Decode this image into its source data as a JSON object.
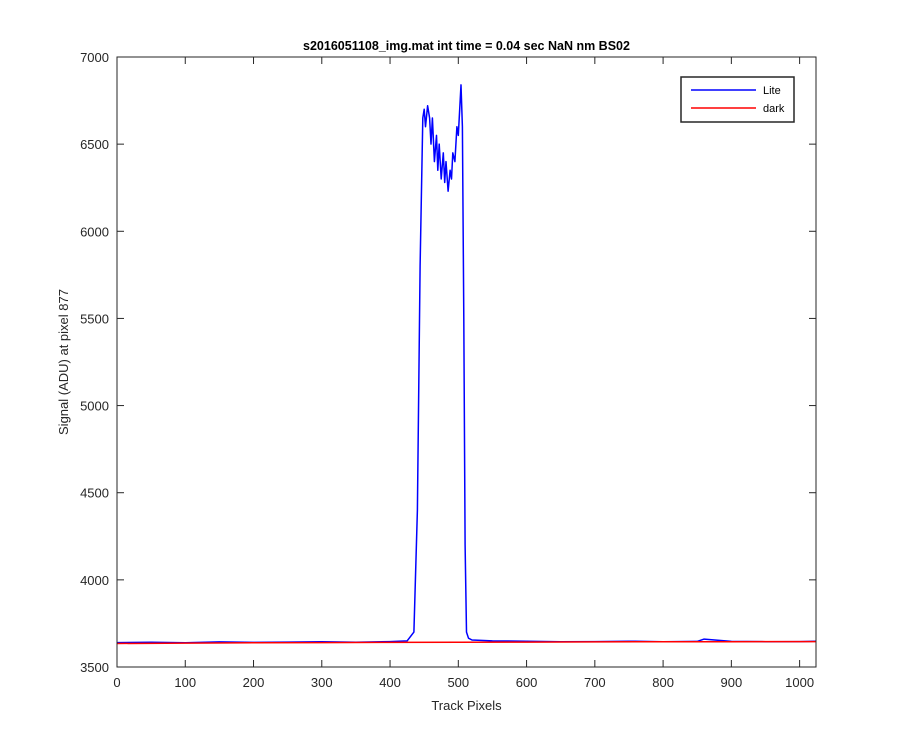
{
  "chart_data": {
    "type": "line",
    "title": "s2016051108_img.mat int time = 0.04 sec  NaN nm BS02",
    "xlabel": "Track Pixels",
    "ylabel": "Signal (ADU) at pixel 877",
    "xlim": [
      0,
      1024
    ],
    "ylim": [
      3500,
      7000
    ],
    "xticks": [
      0,
      100,
      200,
      300,
      400,
      500,
      600,
      700,
      800,
      900,
      1000
    ],
    "yticks": [
      3500,
      4000,
      4500,
      5000,
      5500,
      6000,
      6500,
      7000
    ],
    "grid": false,
    "legend_position": "top-right",
    "series": [
      {
        "name": "Lite",
        "color": "#0000ff",
        "x": [
          0,
          50,
          100,
          150,
          200,
          250,
          300,
          350,
          400,
          425,
          435,
          440,
          444,
          448,
          450,
          452,
          455,
          458,
          460,
          462,
          465,
          468,
          470,
          472,
          475,
          478,
          480,
          482,
          485,
          488,
          490,
          492,
          495,
          498,
          500,
          502,
          504,
          506,
          508,
          510,
          512,
          515,
          520,
          550,
          600,
          650,
          700,
          750,
          800,
          850,
          860,
          900,
          950,
          1000,
          1024
        ],
        "y": [
          3640,
          3642,
          3639,
          3644,
          3641,
          3643,
          3645,
          3642,
          3646,
          3650,
          3700,
          4400,
          5800,
          6650,
          6700,
          6600,
          6720,
          6650,
          6500,
          6650,
          6400,
          6550,
          6350,
          6500,
          6300,
          6450,
          6280,
          6400,
          6230,
          6350,
          6300,
          6450,
          6400,
          6600,
          6550,
          6700,
          6840,
          6600,
          5500,
          4200,
          3700,
          3665,
          3655,
          3650,
          3648,
          3645,
          3646,
          3648,
          3645,
          3647,
          3660,
          3647,
          3645,
          3646,
          3648
        ]
      },
      {
        "name": "dark",
        "color": "#ff0000",
        "x": [
          0,
          100,
          200,
          300,
          400,
          500,
          600,
          700,
          800,
          900,
          1000,
          1024
        ],
        "y": [
          3635,
          3637,
          3639,
          3640,
          3641,
          3642,
          3643,
          3644,
          3645,
          3645,
          3646,
          3646
        ]
      }
    ]
  }
}
